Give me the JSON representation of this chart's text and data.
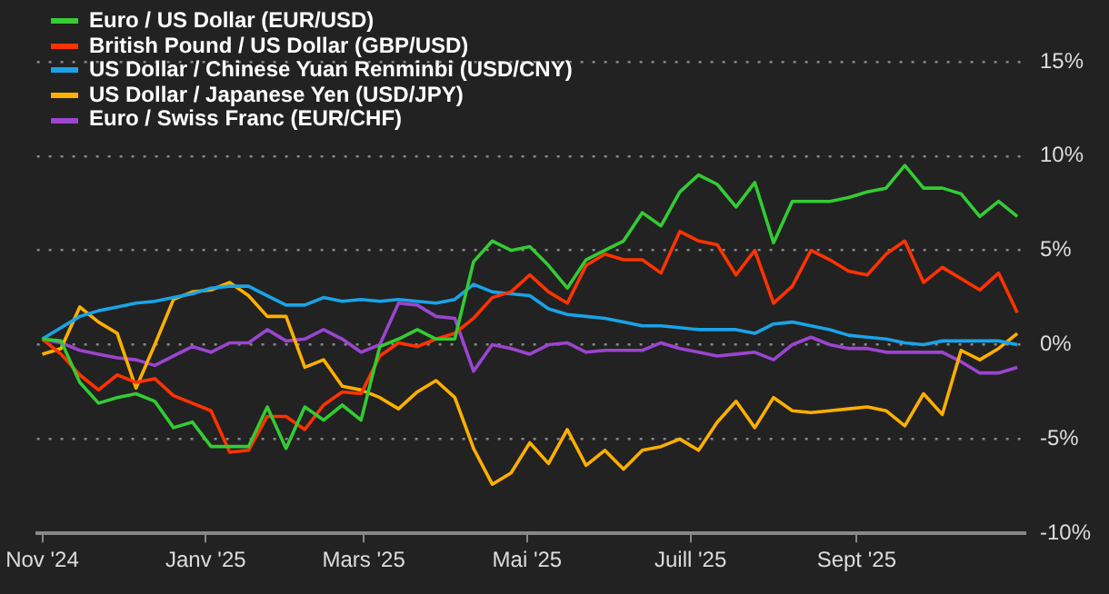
{
  "chart_data": {
    "type": "line",
    "xlim": [
      "2024-10-30",
      "2025-11-03"
    ],
    "ylim": [
      -10,
      15
    ],
    "xticks": [
      {
        "value": "2024-11-01",
        "label": "Nov '24"
      },
      {
        "value": "2025-01-01",
        "label": "Janv '25"
      },
      {
        "value": "2025-03-01",
        "label": "Mars '25"
      },
      {
        "value": "2025-05-01",
        "label": "Mai '25"
      },
      {
        "value": "2025-07-01",
        "label": "Juill '25"
      },
      {
        "value": "2025-09-01",
        "label": "Sept '25"
      }
    ],
    "yticks": [
      {
        "value": -10,
        "label": "-10%"
      },
      {
        "value": -5,
        "label": "-5%"
      },
      {
        "value": 0,
        "label": "0%"
      },
      {
        "value": 5,
        "label": "5%"
      },
      {
        "value": 10,
        "label": "10%"
      },
      {
        "value": 15,
        "label": "15%"
      }
    ],
    "grid": "y",
    "legend": "top left",
    "marker": "none",
    "line_style": "solid",
    "x": [
      "2024-11-01",
      "2024-11-08",
      "2024-11-15",
      "2024-11-22",
      "2024-11-29",
      "2024-12-06",
      "2024-12-13",
      "2024-12-20",
      "2024-12-27",
      "2025-01-03",
      "2025-01-10",
      "2025-01-17",
      "2025-01-24",
      "2025-01-31",
      "2025-02-07",
      "2025-02-14",
      "2025-02-21",
      "2025-02-28",
      "2025-03-07",
      "2025-03-14",
      "2025-03-21",
      "2025-03-28",
      "2025-04-04",
      "2025-04-11",
      "2025-04-18",
      "2025-04-25",
      "2025-05-02",
      "2025-05-09",
      "2025-05-16",
      "2025-05-23",
      "2025-05-30",
      "2025-06-06",
      "2025-06-13",
      "2025-06-20",
      "2025-06-27",
      "2025-07-04",
      "2025-07-11",
      "2025-07-18",
      "2025-07-25",
      "2025-08-01",
      "2025-08-08",
      "2025-08-15",
      "2025-08-22",
      "2025-08-29",
      "2025-09-05",
      "2025-09-12",
      "2025-09-19",
      "2025-09-26",
      "2025-10-03",
      "2025-10-10",
      "2025-10-17",
      "2025-10-24",
      "2025-10-31"
    ],
    "series": [
      {
        "name": "Euro / US Dollar (EUR/USD)",
        "color": "#33cc33",
        "values": [
          0.3,
          0.2,
          -2.0,
          -3.1,
          -2.8,
          -2.6,
          -3.0,
          -4.4,
          -4.1,
          -5.4,
          -5.4,
          -5.4,
          -3.3,
          -5.5,
          -3.3,
          -4.0,
          -3.2,
          -4.0,
          -0.1,
          0.3,
          0.8,
          0.3,
          0.3,
          4.4,
          5.5,
          5.0,
          5.2,
          4.2,
          3.0,
          4.5,
          5.0,
          5.5,
          7.0,
          6.3,
          8.1,
          9.0,
          8.5,
          7.3,
          8.6,
          5.4,
          7.6,
          7.6,
          7.6,
          7.8,
          8.1,
          8.3,
          9.5,
          8.3,
          8.3,
          8.0,
          6.8,
          7.6,
          6.8
        ]
      },
      {
        "name": "British Pound / US Dollar (GBP/USD)",
        "color": "#ff3300",
        "values": [
          0.3,
          -0.5,
          -1.6,
          -2.4,
          -1.6,
          -2.0,
          -1.8,
          -2.7,
          -3.1,
          -3.5,
          -5.7,
          -5.6,
          -3.8,
          -3.8,
          -4.5,
          -3.2,
          -2.5,
          -2.6,
          -0.6,
          0.1,
          -0.1,
          0.3,
          0.6,
          1.4,
          2.5,
          2.8,
          3.7,
          2.8,
          2.2,
          4.2,
          4.8,
          4.5,
          4.5,
          3.8,
          6.0,
          5.5,
          5.3,
          3.7,
          5.0,
          2.2,
          3.1,
          5.0,
          4.5,
          3.9,
          3.7,
          4.8,
          5.5,
          3.3,
          4.1,
          3.5,
          2.9,
          3.8,
          1.7
        ]
      },
      {
        "name": "US Dollar / Chinese Yuan Renminbi (USD/CNY)",
        "color": "#1aa3e8",
        "values": [
          0.3,
          0.9,
          1.5,
          1.8,
          2.0,
          2.2,
          2.3,
          2.5,
          2.7,
          3.0,
          3.1,
          3.1,
          2.6,
          2.1,
          2.1,
          2.5,
          2.3,
          2.4,
          2.3,
          2.4,
          2.3,
          2.2,
          2.4,
          3.2,
          2.8,
          2.7,
          2.6,
          1.9,
          1.6,
          1.5,
          1.4,
          1.2,
          1.0,
          1.0,
          0.9,
          0.8,
          0.8,
          0.8,
          0.6,
          1.1,
          1.2,
          1.0,
          0.8,
          0.5,
          0.4,
          0.3,
          0.1,
          0.0,
          0.2,
          0.2,
          0.2,
          0.2,
          0.0
        ]
      },
      {
        "name": "US Dollar / Japanese Yen (USD/JPY)",
        "color": "#ffb000",
        "values": [
          -0.5,
          -0.2,
          2.0,
          1.2,
          0.6,
          -2.3,
          0.0,
          2.4,
          2.8,
          2.9,
          3.3,
          2.6,
          1.5,
          1.5,
          -1.2,
          -0.8,
          -2.2,
          -2.4,
          -2.8,
          -3.4,
          -2.5,
          -1.9,
          -2.8,
          -5.5,
          -7.4,
          -6.8,
          -5.2,
          -6.3,
          -4.5,
          -6.4,
          -5.6,
          -6.6,
          -5.6,
          -5.4,
          -5.0,
          -5.6,
          -4.1,
          -3.0,
          -4.4,
          -2.8,
          -3.5,
          -3.6,
          -3.5,
          -3.4,
          -3.3,
          -3.5,
          -4.3,
          -2.6,
          -3.7,
          -0.3,
          -0.8,
          -0.2,
          0.6
        ]
      },
      {
        "name": "Euro / Swiss Franc (EUR/CHF)",
        "color": "#9b45d0",
        "values": [
          0.3,
          0.1,
          -0.3,
          -0.5,
          -0.7,
          -0.8,
          -1.1,
          -0.6,
          -0.1,
          -0.4,
          0.1,
          0.1,
          0.8,
          0.2,
          0.3,
          0.8,
          0.3,
          -0.4,
          0.0,
          2.2,
          2.1,
          1.5,
          1.4,
          -1.4,
          0.0,
          -0.2,
          -0.5,
          0.0,
          0.1,
          -0.4,
          -0.3,
          -0.3,
          -0.3,
          0.1,
          -0.2,
          -0.4,
          -0.6,
          -0.5,
          -0.4,
          -0.8,
          0.0,
          0.4,
          0.0,
          -0.2,
          -0.2,
          -0.4,
          -0.4,
          -0.4,
          -0.4,
          -0.9,
          -1.5,
          -1.5,
          -1.2
        ]
      }
    ]
  }
}
